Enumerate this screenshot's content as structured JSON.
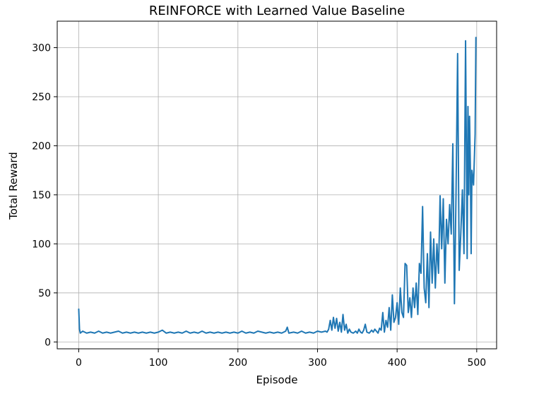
{
  "chart_data": {
    "type": "line",
    "title": "REINFORCE with Learned Value Baseline",
    "xlabel": "Episode",
    "ylabel": "Total Reward",
    "xlim": [
      -27,
      525
    ],
    "ylim": [
      -7,
      327
    ],
    "grid": true,
    "xticks": [
      0,
      100,
      200,
      300,
      400,
      500
    ],
    "yticks": [
      0,
      50,
      100,
      150,
      200,
      250,
      300
    ],
    "series": [
      {
        "color": "#1f77b4",
        "points": [
          [
            0,
            34
          ],
          [
            1,
            13
          ],
          [
            2,
            9
          ],
          [
            5,
            11
          ],
          [
            10,
            9
          ],
          [
            15,
            10
          ],
          [
            20,
            9
          ],
          [
            25,
            11
          ],
          [
            30,
            9
          ],
          [
            35,
            10
          ],
          [
            40,
            9
          ],
          [
            45,
            10
          ],
          [
            50,
            11
          ],
          [
            55,
            9
          ],
          [
            60,
            10
          ],
          [
            65,
            9
          ],
          [
            70,
            10
          ],
          [
            75,
            9
          ],
          [
            80,
            10
          ],
          [
            85,
            9
          ],
          [
            90,
            10
          ],
          [
            95,
            9
          ],
          [
            100,
            10
          ],
          [
            105,
            12
          ],
          [
            110,
            9
          ],
          [
            115,
            10
          ],
          [
            120,
            9
          ],
          [
            125,
            10
          ],
          [
            130,
            9
          ],
          [
            135,
            11
          ],
          [
            140,
            9
          ],
          [
            145,
            10
          ],
          [
            150,
            9
          ],
          [
            155,
            11
          ],
          [
            160,
            9
          ],
          [
            165,
            10
          ],
          [
            170,
            9
          ],
          [
            175,
            10
          ],
          [
            180,
            9
          ],
          [
            185,
            10
          ],
          [
            190,
            9
          ],
          [
            195,
            10
          ],
          [
            200,
            9
          ],
          [
            205,
            11
          ],
          [
            210,
            9
          ],
          [
            215,
            10
          ],
          [
            220,
            9
          ],
          [
            225,
            11
          ],
          [
            230,
            10
          ],
          [
            235,
            9
          ],
          [
            240,
            10
          ],
          [
            245,
            9
          ],
          [
            250,
            10
          ],
          [
            255,
            9
          ],
          [
            260,
            11
          ],
          [
            262,
            15
          ],
          [
            264,
            9
          ],
          [
            270,
            10
          ],
          [
            275,
            9
          ],
          [
            280,
            11
          ],
          [
            285,
            9
          ],
          [
            290,
            10
          ],
          [
            295,
            9
          ],
          [
            300,
            11
          ],
          [
            305,
            10
          ],
          [
            310,
            11
          ],
          [
            312,
            10
          ],
          [
            314,
            13
          ],
          [
            316,
            22
          ],
          [
            318,
            12
          ],
          [
            320,
            25
          ],
          [
            322,
            14
          ],
          [
            324,
            24
          ],
          [
            326,
            11
          ],
          [
            328,
            20
          ],
          [
            330,
            10
          ],
          [
            332,
            28
          ],
          [
            334,
            12
          ],
          [
            336,
            18
          ],
          [
            338,
            9
          ],
          [
            340,
            13
          ],
          [
            342,
            10
          ],
          [
            345,
            9
          ],
          [
            348,
            11
          ],
          [
            350,
            9
          ],
          [
            352,
            13
          ],
          [
            354,
            10
          ],
          [
            356,
            9
          ],
          [
            358,
            12
          ],
          [
            360,
            18
          ],
          [
            362,
            10
          ],
          [
            365,
            9
          ],
          [
            368,
            12
          ],
          [
            370,
            10
          ],
          [
            372,
            13
          ],
          [
            374,
            11
          ],
          [
            376,
            9
          ],
          [
            378,
            14
          ],
          [
            380,
            12
          ],
          [
            382,
            30
          ],
          [
            384,
            10
          ],
          [
            386,
            22
          ],
          [
            388,
            15
          ],
          [
            390,
            35
          ],
          [
            392,
            12
          ],
          [
            394,
            48
          ],
          [
            396,
            20
          ],
          [
            398,
            25
          ],
          [
            400,
            40
          ],
          [
            402,
            18
          ],
          [
            404,
            55
          ],
          [
            406,
            30
          ],
          [
            408,
            25
          ],
          [
            410,
            80
          ],
          [
            412,
            78
          ],
          [
            414,
            30
          ],
          [
            416,
            45
          ],
          [
            418,
            25
          ],
          [
            420,
            55
          ],
          [
            422,
            35
          ],
          [
            424,
            60
          ],
          [
            426,
            28
          ],
          [
            428,
            80
          ],
          [
            430,
            70
          ],
          [
            432,
            138
          ],
          [
            434,
            55
          ],
          [
            436,
            40
          ],
          [
            438,
            90
          ],
          [
            440,
            35
          ],
          [
            442,
            112
          ],
          [
            444,
            60
          ],
          [
            446,
            105
          ],
          [
            448,
            55
          ],
          [
            450,
            100
          ],
          [
            452,
            70
          ],
          [
            454,
            149
          ],
          [
            456,
            95
          ],
          [
            458,
            146
          ],
          [
            460,
            60
          ],
          [
            462,
            125
          ],
          [
            464,
            100
          ],
          [
            466,
            140
          ],
          [
            468,
            110
          ],
          [
            470,
            202
          ],
          [
            472,
            39
          ],
          [
            474,
            150
          ],
          [
            476,
            294
          ],
          [
            478,
            73
          ],
          [
            480,
            110
          ],
          [
            482,
            155
          ],
          [
            484,
            90
          ],
          [
            486,
            307
          ],
          [
            488,
            85
          ],
          [
            489,
            240
          ],
          [
            490,
            150
          ],
          [
            491,
            230
          ],
          [
            492,
            180
          ],
          [
            493,
            90
          ],
          [
            494,
            175
          ],
          [
            496,
            160
          ],
          [
            498,
            212
          ],
          [
            499,
            311
          ]
        ]
      }
    ]
  }
}
